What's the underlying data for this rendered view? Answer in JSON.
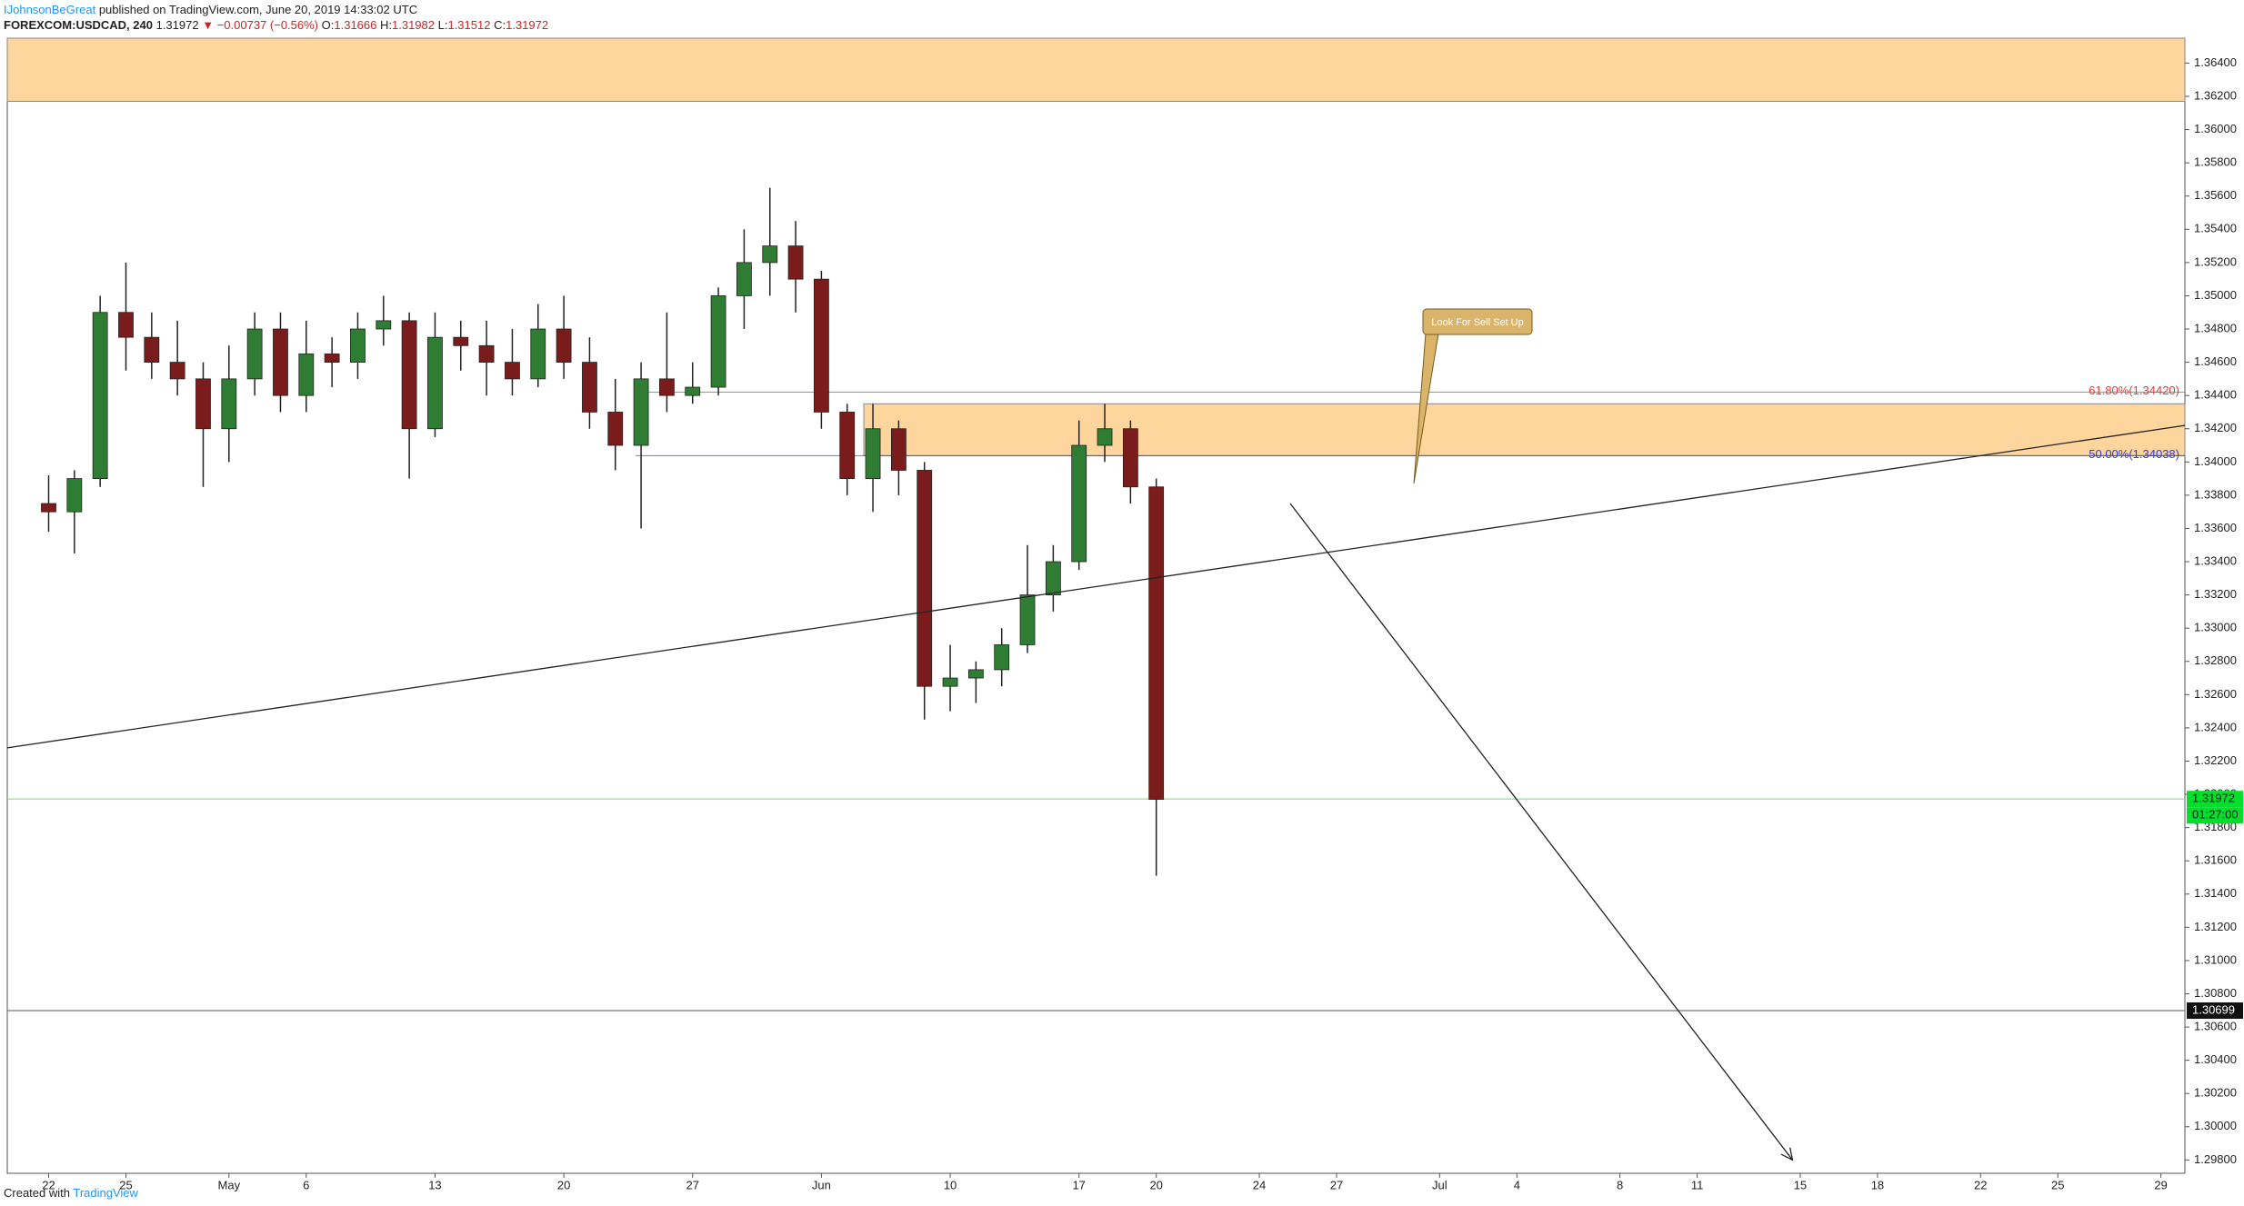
{
  "header": {
    "author": "IJohnsonBeGreat",
    "published": "published on TradingView.com, June 20, 2019 14:33:02 UTC",
    "symbol": "FOREXCOM:USDCAD, 240",
    "last": "1.31972",
    "change": "▼ −0.00737 (−0.56%)",
    "open_label": "O:",
    "open": "1.31666",
    "high_label": "H:",
    "high": "1.31982",
    "low_label": "L:",
    "low": "1.31512",
    "close_label": "C:",
    "close": "1.31972"
  },
  "footer": {
    "created": "Created with",
    "brand": "TradingView"
  },
  "chart_data": {
    "type": "candlestick",
    "categories": [
      "22",
      null,
      null,
      "25",
      null,
      null,
      null,
      "May",
      null,
      null,
      "6",
      null,
      null,
      null,
      null,
      "13",
      null,
      null,
      null,
      null,
      "20",
      null,
      null,
      null,
      null,
      "27",
      null,
      null,
      null,
      null,
      "Jun",
      null,
      null,
      null,
      null,
      "10",
      null,
      null,
      null,
      null,
      "17",
      null,
      null,
      "20",
      null,
      null,
      null,
      "24",
      null,
      null,
      "27",
      null,
      null,
      null,
      "Jul",
      null,
      null,
      "4",
      null,
      null,
      null,
      "8",
      null,
      null,
      "11",
      null,
      null,
      null,
      "15",
      null,
      null,
      "18",
      null,
      null,
      null,
      "22",
      null,
      null,
      "25",
      null,
      null,
      null,
      "29",
      null
    ],
    "open": [
      1.3375,
      1.337,
      1.339,
      1.349,
      1.3475,
      1.346,
      1.345,
      1.342,
      1.345,
      1.348,
      1.344,
      1.3465,
      1.346,
      1.348,
      1.3485,
      1.342,
      1.3475,
      1.347,
      1.346,
      1.345,
      1.348,
      1.346,
      1.343,
      1.341,
      1.345,
      1.344,
      1.3445,
      1.35,
      1.352,
      1.353,
      1.351,
      1.343,
      1.339,
      1.342,
      1.3395,
      1.3265,
      1.327,
      1.3275,
      1.329,
      1.332,
      1.334,
      1.341,
      1.342,
      1.3385,
      null,
      null,
      null,
      null,
      null,
      null,
      null,
      null,
      null,
      null,
      null,
      null,
      null,
      null,
      null,
      null,
      null,
      null,
      null,
      null,
      null,
      null,
      null,
      null,
      null,
      null,
      null,
      null,
      null,
      null,
      null,
      null,
      null,
      null,
      null,
      null,
      null,
      null,
      null,
      null
    ],
    "high": [
      1.3392,
      1.3395,
      1.35,
      1.352,
      1.349,
      1.3485,
      1.346,
      1.347,
      1.349,
      1.349,
      1.3485,
      1.3475,
      1.349,
      1.35,
      1.349,
      1.349,
      1.3485,
      1.3485,
      1.348,
      1.3495,
      1.35,
      1.3475,
      1.345,
      1.346,
      1.349,
      1.346,
      1.3505,
      1.354,
      1.3565,
      1.3545,
      1.3515,
      1.3435,
      1.3435,
      1.3425,
      1.34,
      1.329,
      1.328,
      1.33,
      1.335,
      1.335,
      1.3425,
      1.3435,
      1.3425,
      1.339,
      null,
      null,
      null,
      null,
      null,
      null,
      null,
      null,
      null,
      null,
      null,
      null,
      null,
      null,
      null,
      null,
      null,
      null,
      null,
      null,
      null,
      null,
      null,
      null,
      null,
      null,
      null,
      null,
      null,
      null,
      null,
      null,
      null,
      null,
      null,
      null,
      null,
      null,
      null,
      null
    ],
    "low": [
      1.3358,
      1.3345,
      1.3385,
      1.3455,
      1.345,
      1.344,
      1.3385,
      1.34,
      1.344,
      1.343,
      1.343,
      1.3445,
      1.345,
      1.347,
      1.339,
      1.3415,
      1.3455,
      1.344,
      1.344,
      1.3445,
      1.345,
      1.342,
      1.3395,
      1.336,
      1.343,
      1.3435,
      1.344,
      1.348,
      1.35,
      1.349,
      1.342,
      1.338,
      1.337,
      1.338,
      1.3245,
      1.325,
      1.3255,
      1.3265,
      1.3285,
      1.331,
      1.3335,
      1.34,
      1.3375,
      1.3151,
      null,
      null,
      null,
      null,
      null,
      null,
      null,
      null,
      null,
      null,
      null,
      null,
      null,
      null,
      null,
      null,
      null,
      null,
      null,
      null,
      null,
      null,
      null,
      null,
      null,
      null,
      null,
      null,
      null,
      null,
      null,
      null,
      null,
      null,
      null,
      null,
      null,
      null,
      null,
      null
    ],
    "close": [
      1.337,
      1.339,
      1.349,
      1.3475,
      1.346,
      1.345,
      1.342,
      1.345,
      1.348,
      1.344,
      1.3465,
      1.346,
      1.348,
      1.3485,
      1.342,
      1.3475,
      1.347,
      1.346,
      1.345,
      1.348,
      1.346,
      1.343,
      1.341,
      1.345,
      1.344,
      1.3445,
      1.35,
      1.352,
      1.353,
      1.351,
      1.343,
      1.339,
      1.342,
      1.3395,
      1.3265,
      1.327,
      1.3275,
      1.329,
      1.332,
      1.334,
      1.341,
      1.342,
      1.3385,
      1.3197,
      null,
      null,
      null,
      null,
      null,
      null,
      null,
      null,
      null,
      null,
      null,
      null,
      null,
      null,
      null,
      null,
      null,
      null,
      null,
      null,
      null,
      null,
      null,
      null,
      null,
      null,
      null,
      null,
      null,
      null,
      null,
      null,
      null,
      null,
      null,
      null,
      null,
      null,
      null,
      null
    ],
    "up_color": "#2e7d32",
    "down_color": "#7b1c1c",
    "ylim": [
      1.2972,
      1.3655
    ],
    "yticks": [
      {
        "value": 1.364,
        "label": "1.36400"
      },
      {
        "value": 1.362,
        "label": "1.36200"
      },
      {
        "value": 1.36,
        "label": "1.36000"
      },
      {
        "value": 1.358,
        "label": "1.35800"
      },
      {
        "value": 1.356,
        "label": "1.35600"
      },
      {
        "value": 1.354,
        "label": "1.35400"
      },
      {
        "value": 1.352,
        "label": "1.35200"
      },
      {
        "value": 1.35,
        "label": "1.35000"
      },
      {
        "value": 1.348,
        "label": "1.34800"
      },
      {
        "value": 1.346,
        "label": "1.34600"
      },
      {
        "value": 1.344,
        "label": "1.34400"
      },
      {
        "value": 1.342,
        "label": "1.34200"
      },
      {
        "value": 1.34,
        "label": "1.34000"
      },
      {
        "value": 1.338,
        "label": "1.33800"
      },
      {
        "value": 1.336,
        "label": "1.33600"
      },
      {
        "value": 1.334,
        "label": "1.33400"
      },
      {
        "value": 1.332,
        "label": "1.33200"
      },
      {
        "value": 1.33,
        "label": "1.33000"
      },
      {
        "value": 1.328,
        "label": "1.32800"
      },
      {
        "value": 1.326,
        "label": "1.32600"
      },
      {
        "value": 1.324,
        "label": "1.32400"
      },
      {
        "value": 1.322,
        "label": "1.32200"
      },
      {
        "value": 1.32,
        "label": "1.32000"
      },
      {
        "value": 1.318,
        "label": "1.31800"
      },
      {
        "value": 1.316,
        "label": "1.31600"
      },
      {
        "value": 1.314,
        "label": "1.31400"
      },
      {
        "value": 1.312,
        "label": "1.31200"
      },
      {
        "value": 1.31,
        "label": "1.31000"
      },
      {
        "value": 1.308,
        "label": "1.30800"
      },
      {
        "value": 1.306,
        "label": "1.30600"
      },
      {
        "value": 1.304,
        "label": "1.30400"
      },
      {
        "value": 1.302,
        "label": "1.30200"
      },
      {
        "value": 1.3,
        "label": "1.30000"
      },
      {
        "value": 1.298,
        "label": "1.29800"
      }
    ],
    "zones": [
      {
        "from": 1.3617,
        "to": 1.3655
      },
      {
        "from": 1.34038,
        "to": 1.3435
      }
    ],
    "fib_levels": [
      {
        "value": 1.3442,
        "label": "61.80%(1.34420)",
        "color": "#e53935"
      },
      {
        "value": 1.34038,
        "label": "50.00%(1.34038)",
        "color": "#2f3cd8"
      }
    ],
    "trendline": {
      "start": 1.3228,
      "end": 1.3422
    },
    "arrow": {
      "start": 1.3375,
      "end": 1.298
    },
    "price_line": {
      "value": 1.31972,
      "label": "1.31972",
      "countdown": "01:27:00"
    },
    "level_line": {
      "value": 1.30699,
      "label": "1.30699"
    },
    "annotation": "Look For Sell Set Up"
  }
}
